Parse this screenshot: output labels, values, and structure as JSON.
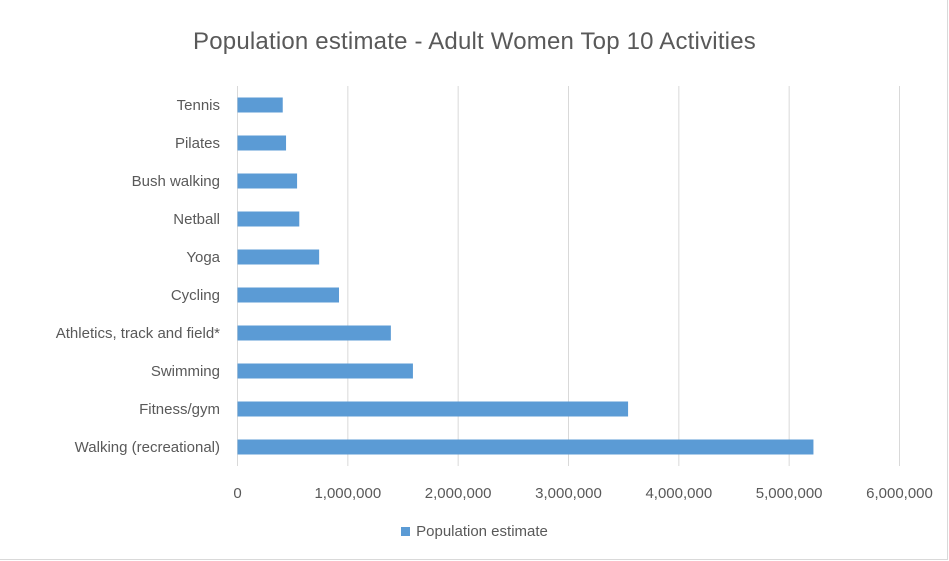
{
  "chart_data": {
    "type": "bar",
    "orientation": "horizontal",
    "title": "Population estimate - Adult Women Top 10 Activities",
    "xlabel": "",
    "ylabel": "",
    "categories": [
      "Tennis",
      "Pilates",
      "Bush walking",
      "Netball",
      "Yoga",
      "Cycling",
      "Athletics, track and field*",
      "Swimming",
      "Fitness/gym",
      "Walking (recreational)"
    ],
    "series": [
      {
        "name": "Population estimate",
        "color": "#5b9bd5",
        "values": [
          410000,
          440000,
          540000,
          560000,
          740000,
          920000,
          1390000,
          1590000,
          3540000,
          5220000
        ]
      }
    ],
    "xlim": [
      0,
      6000000
    ],
    "x_ticks": [
      "0",
      "1,000,000",
      "2,000,000",
      "3,000,000",
      "4,000,000",
      "5,000,000",
      "6,000,000"
    ],
    "grid": "vertical",
    "legend_position": "bottom"
  }
}
